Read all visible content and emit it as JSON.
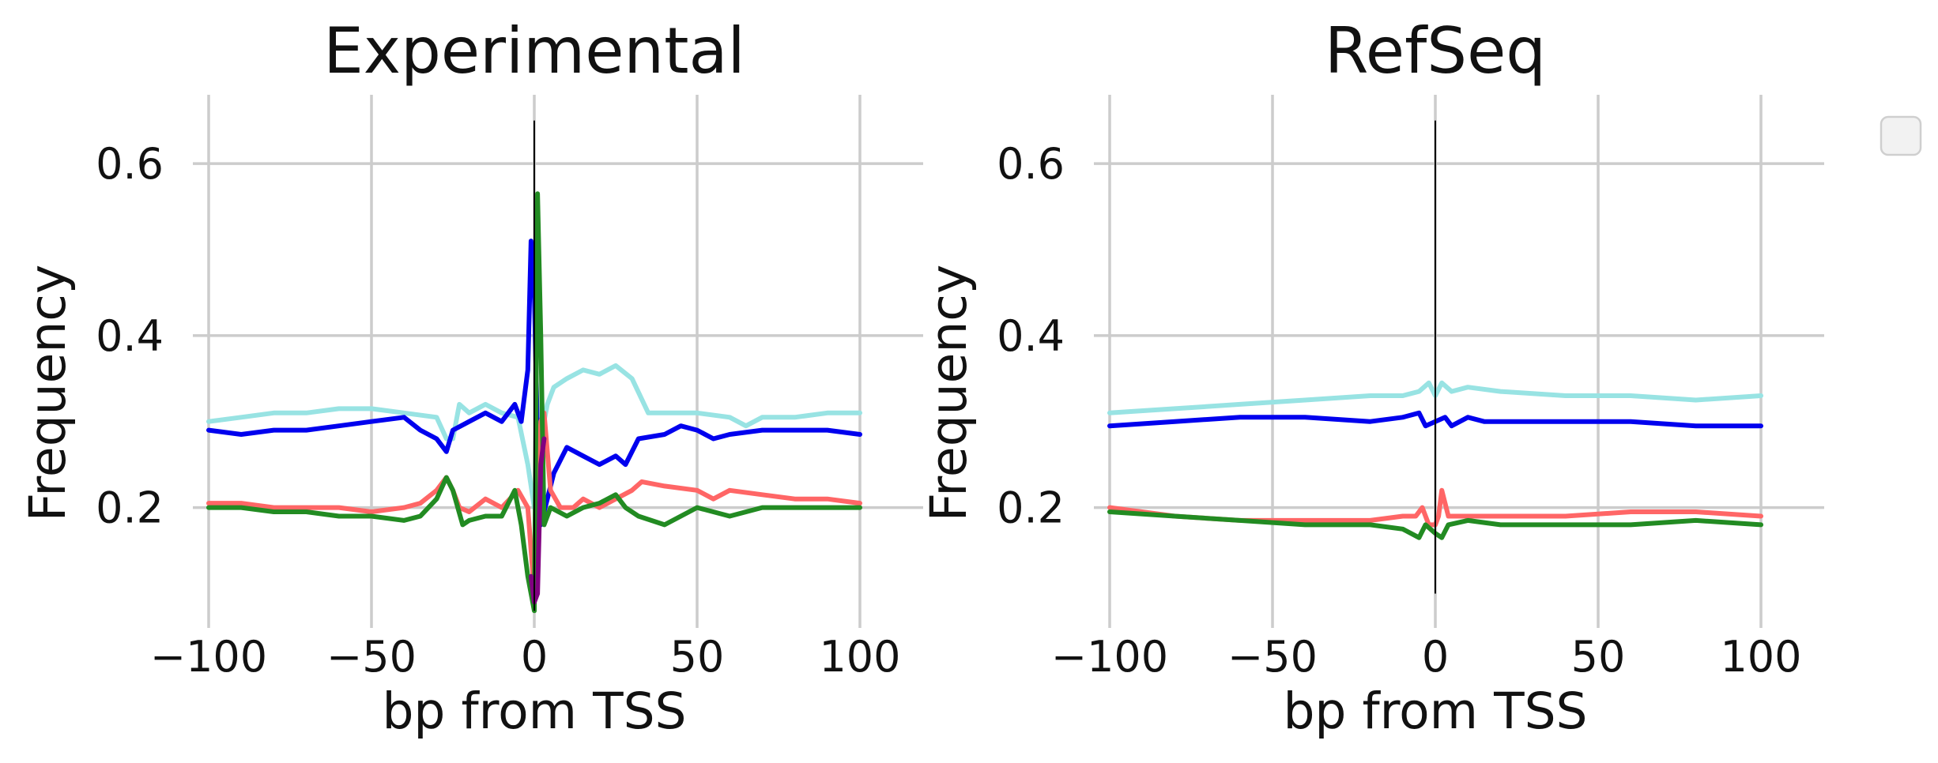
{
  "chart_data": [
    {
      "type": "line",
      "title": "Experimental",
      "xlabel": "bp from TSS",
      "ylabel": "Frequency",
      "xlim": [
        -100,
        100
      ],
      "ylim": [
        0.06,
        0.68
      ],
      "xticks": [
        -100,
        -50,
        0,
        50,
        100
      ],
      "xtick_labels": [
        "−100",
        "−50",
        "0",
        "50",
        "100"
      ],
      "yticks": [
        0.2,
        0.4,
        0.6
      ],
      "ytick_labels": [
        "0.2",
        "0.4",
        "0.6"
      ],
      "grid": true,
      "vline_x": 0,
      "vline_range": [
        0.08,
        0.65
      ],
      "series": [
        {
          "color": "#98e3e3",
          "points": [
            [
              -100,
              0.3
            ],
            [
              -90,
              0.305
            ],
            [
              -80,
              0.31
            ],
            [
              -70,
              0.31
            ],
            [
              -60,
              0.315
            ],
            [
              -50,
              0.315
            ],
            [
              -40,
              0.31
            ],
            [
              -30,
              0.305
            ],
            [
              -27,
              0.28
            ],
            [
              -25,
              0.28
            ],
            [
              -23,
              0.32
            ],
            [
              -20,
              0.31
            ],
            [
              -15,
              0.32
            ],
            [
              -10,
              0.31
            ],
            [
              -5,
              0.305
            ],
            [
              -2,
              0.25
            ],
            [
              0,
              0.2
            ],
            [
              2,
              0.28
            ],
            [
              4,
              0.32
            ],
            [
              6,
              0.34
            ],
            [
              10,
              0.35
            ],
            [
              15,
              0.36
            ],
            [
              20,
              0.355
            ],
            [
              25,
              0.365
            ],
            [
              30,
              0.35
            ],
            [
              35,
              0.31
            ],
            [
              40,
              0.31
            ],
            [
              50,
              0.31
            ],
            [
              60,
              0.305
            ],
            [
              65,
              0.295
            ],
            [
              70,
              0.305
            ],
            [
              80,
              0.305
            ],
            [
              90,
              0.31
            ],
            [
              100,
              0.31
            ]
          ]
        },
        {
          "color": "#0000ee",
          "points": [
            [
              -100,
              0.29
            ],
            [
              -90,
              0.285
            ],
            [
              -80,
              0.29
            ],
            [
              -70,
              0.29
            ],
            [
              -60,
              0.295
            ],
            [
              -50,
              0.3
            ],
            [
              -40,
              0.305
            ],
            [
              -35,
              0.29
            ],
            [
              -30,
              0.28
            ],
            [
              -27,
              0.265
            ],
            [
              -25,
              0.29
            ],
            [
              -20,
              0.3
            ],
            [
              -15,
              0.31
            ],
            [
              -10,
              0.3
            ],
            [
              -6,
              0.32
            ],
            [
              -4,
              0.3
            ],
            [
              -2,
              0.36
            ],
            [
              -1,
              0.51
            ],
            [
              0,
              0.45
            ],
            [
              1,
              0.28
            ],
            [
              2,
              0.18
            ],
            [
              4,
              0.21
            ],
            [
              6,
              0.24
            ],
            [
              10,
              0.27
            ],
            [
              15,
              0.26
            ],
            [
              20,
              0.25
            ],
            [
              25,
              0.26
            ],
            [
              28,
              0.25
            ],
            [
              32,
              0.28
            ],
            [
              40,
              0.285
            ],
            [
              45,
              0.295
            ],
            [
              50,
              0.29
            ],
            [
              55,
              0.28
            ],
            [
              60,
              0.285
            ],
            [
              70,
              0.29
            ],
            [
              80,
              0.29
            ],
            [
              90,
              0.29
            ],
            [
              100,
              0.285
            ]
          ]
        },
        {
          "color": "#ff6666",
          "points": [
            [
              -100,
              0.205
            ],
            [
              -90,
              0.205
            ],
            [
              -80,
              0.2
            ],
            [
              -70,
              0.2
            ],
            [
              -60,
              0.2
            ],
            [
              -50,
              0.195
            ],
            [
              -40,
              0.2
            ],
            [
              -35,
              0.205
            ],
            [
              -30,
              0.22
            ],
            [
              -27,
              0.235
            ],
            [
              -25,
              0.22
            ],
            [
              -23,
              0.2
            ],
            [
              -20,
              0.195
            ],
            [
              -15,
              0.21
            ],
            [
              -10,
              0.2
            ],
            [
              -5,
              0.22
            ],
            [
              -2,
              0.2
            ],
            [
              0,
              0.1
            ],
            [
              1,
              0.22
            ],
            [
              2,
              0.3
            ],
            [
              3,
              0.31
            ],
            [
              5,
              0.22
            ],
            [
              8,
              0.2
            ],
            [
              12,
              0.2
            ],
            [
              15,
              0.21
            ],
            [
              20,
              0.2
            ],
            [
              25,
              0.21
            ],
            [
              30,
              0.22
            ],
            [
              33,
              0.23
            ],
            [
              40,
              0.225
            ],
            [
              50,
              0.22
            ],
            [
              55,
              0.21
            ],
            [
              60,
              0.22
            ],
            [
              70,
              0.215
            ],
            [
              80,
              0.21
            ],
            [
              90,
              0.21
            ],
            [
              100,
              0.205
            ]
          ]
        },
        {
          "color": "#228b22",
          "points": [
            [
              -100,
              0.2
            ],
            [
              -90,
              0.2
            ],
            [
              -80,
              0.195
            ],
            [
              -70,
              0.195
            ],
            [
              -60,
              0.19
            ],
            [
              -50,
              0.19
            ],
            [
              -40,
              0.185
            ],
            [
              -35,
              0.19
            ],
            [
              -30,
              0.21
            ],
            [
              -27,
              0.235
            ],
            [
              -25,
              0.22
            ],
            [
              -22,
              0.18
            ],
            [
              -20,
              0.185
            ],
            [
              -15,
              0.19
            ],
            [
              -10,
              0.19
            ],
            [
              -6,
              0.22
            ],
            [
              -4,
              0.18
            ],
            [
              -2,
              0.12
            ],
            [
              0,
              0.08
            ],
            [
              0.5,
              0.3
            ],
            [
              1,
              0.565
            ],
            [
              2,
              0.4
            ],
            [
              3,
              0.18
            ],
            [
              5,
              0.2
            ],
            [
              10,
              0.19
            ],
            [
              15,
              0.2
            ],
            [
              20,
              0.205
            ],
            [
              25,
              0.215
            ],
            [
              28,
              0.2
            ],
            [
              32,
              0.19
            ],
            [
              40,
              0.18
            ],
            [
              45,
              0.19
            ],
            [
              50,
              0.2
            ],
            [
              60,
              0.19
            ],
            [
              70,
              0.2
            ],
            [
              80,
              0.2
            ],
            [
              90,
              0.2
            ],
            [
              100,
              0.2
            ]
          ]
        },
        {
          "color": "#800080",
          "points": [
            [
              -1,
              0.12
            ],
            [
              0,
              0.09
            ],
            [
              1,
              0.1
            ],
            [
              2,
              0.25
            ],
            [
              3,
              0.28
            ]
          ]
        }
      ]
    },
    {
      "type": "line",
      "title": "RefSeq",
      "xlabel": "bp from TSS",
      "ylabel": "Frequency",
      "xlim": [
        -100,
        100
      ],
      "ylim": [
        0.06,
        0.68
      ],
      "xticks": [
        -100,
        -50,
        0,
        50,
        100
      ],
      "xtick_labels": [
        "−100",
        "−50",
        "0",
        "50",
        "100"
      ],
      "yticks": [
        0.2,
        0.4,
        0.6
      ],
      "ytick_labels": [
        "0.2",
        "0.4",
        "0.6"
      ],
      "grid": true,
      "vline_x": 0,
      "vline_range": [
        0.1,
        0.65
      ],
      "series": [
        {
          "color": "#98e3e3",
          "points": [
            [
              -100,
              0.31
            ],
            [
              -80,
              0.315
            ],
            [
              -60,
              0.32
            ],
            [
              -40,
              0.325
            ],
            [
              -20,
              0.33
            ],
            [
              -10,
              0.33
            ],
            [
              -5,
              0.335
            ],
            [
              -2,
              0.345
            ],
            [
              0,
              0.33
            ],
            [
              2,
              0.345
            ],
            [
              5,
              0.335
            ],
            [
              10,
              0.34
            ],
            [
              20,
              0.335
            ],
            [
              40,
              0.33
            ],
            [
              60,
              0.33
            ],
            [
              80,
              0.325
            ],
            [
              100,
              0.33
            ]
          ]
        },
        {
          "color": "#0000ee",
          "points": [
            [
              -100,
              0.295
            ],
            [
              -80,
              0.3
            ],
            [
              -60,
              0.305
            ],
            [
              -40,
              0.305
            ],
            [
              -20,
              0.3
            ],
            [
              -10,
              0.305
            ],
            [
              -5,
              0.31
            ],
            [
              -3,
              0.295
            ],
            [
              0,
              0.3
            ],
            [
              3,
              0.305
            ],
            [
              5,
              0.295
            ],
            [
              10,
              0.305
            ],
            [
              15,
              0.3
            ],
            [
              20,
              0.3
            ],
            [
              40,
              0.3
            ],
            [
              60,
              0.3
            ],
            [
              80,
              0.295
            ],
            [
              100,
              0.295
            ]
          ]
        },
        {
          "color": "#ff6666",
          "points": [
            [
              -100,
              0.2
            ],
            [
              -80,
              0.19
            ],
            [
              -60,
              0.185
            ],
            [
              -40,
              0.185
            ],
            [
              -20,
              0.185
            ],
            [
              -10,
              0.19
            ],
            [
              -6,
              0.19
            ],
            [
              -4,
              0.2
            ],
            [
              -2,
              0.18
            ],
            [
              0,
              0.18
            ],
            [
              1,
              0.19
            ],
            [
              2,
              0.22
            ],
            [
              4,
              0.19
            ],
            [
              10,
              0.19
            ],
            [
              20,
              0.19
            ],
            [
              40,
              0.19
            ],
            [
              60,
              0.195
            ],
            [
              80,
              0.195
            ],
            [
              100,
              0.19
            ]
          ]
        },
        {
          "color": "#228b22",
          "points": [
            [
              -100,
              0.195
            ],
            [
              -80,
              0.19
            ],
            [
              -60,
              0.185
            ],
            [
              -40,
              0.18
            ],
            [
              -20,
              0.18
            ],
            [
              -10,
              0.175
            ],
            [
              -5,
              0.165
            ],
            [
              -3,
              0.18
            ],
            [
              0,
              0.17
            ],
            [
              2,
              0.165
            ],
            [
              4,
              0.18
            ],
            [
              10,
              0.185
            ],
            [
              20,
              0.18
            ],
            [
              40,
              0.18
            ],
            [
              60,
              0.18
            ],
            [
              80,
              0.185
            ],
            [
              100,
              0.18
            ]
          ]
        }
      ]
    }
  ]
}
